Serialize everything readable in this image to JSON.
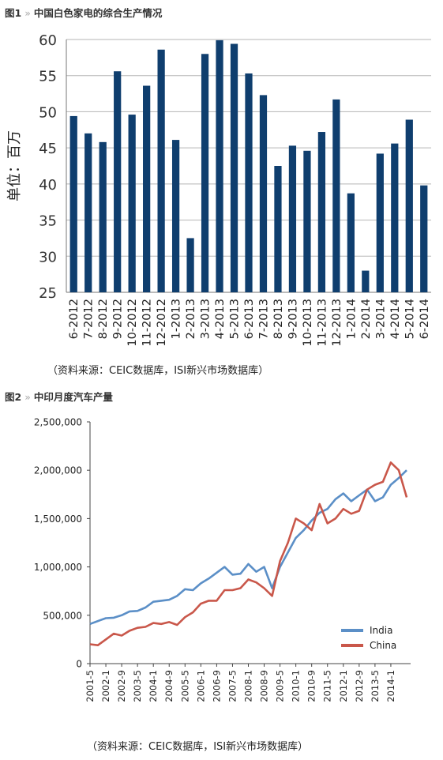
{
  "figure1": {
    "label": "图1",
    "separator": "»",
    "title": "中国白色家电的综合生产情况",
    "source": "（资料来源：CEIC数据库，ISI新兴市场数据库）"
  },
  "figure2": {
    "label": "图2",
    "separator": "»",
    "title": "中印月度汽车产量",
    "source": "（资料来源：CEIC数据库，ISI新兴市场数据库）"
  },
  "chart_data": [
    {
      "type": "bar",
      "ylabel": "单位：百万",
      "ylim": [
        25,
        60
      ],
      "yticks": [
        25,
        30,
        35,
        40,
        45,
        50,
        55,
        60
      ],
      "grid": true,
      "bar_color": "#0f3e6e",
      "categories": [
        "6-2012",
        "7-2012",
        "8-2012",
        "9-2012",
        "10-2012",
        "11-2012",
        "12-2012",
        "1-2013",
        "2-2013",
        "3-2013",
        "4-2013",
        "5-2013",
        "6-2013",
        "7-2013",
        "8-2013",
        "9-2013",
        "10-2013",
        "11-2013",
        "12-2013",
        "1-2014",
        "2-2014",
        "3-2014",
        "4-2014",
        "5-2014",
        "6-2014"
      ],
      "values": [
        49.4,
        47.0,
        45.8,
        55.6,
        49.6,
        53.6,
        58.6,
        46.1,
        32.5,
        58.0,
        59.9,
        59.4,
        55.3,
        52.3,
        42.5,
        45.3,
        44.6,
        47.2,
        51.7,
        38.7,
        28.0,
        44.2,
        45.6,
        48.9,
        39.8
      ]
    },
    {
      "type": "line",
      "ylim": [
        0,
        2500000
      ],
      "yticks": [
        "0",
        "500,000",
        "1,000,000",
        "1,500,000",
        "2,000,000",
        "2,500,000"
      ],
      "xticks": [
        "2001-5",
        "2002-1",
        "2002-9",
        "2003-5",
        "2004-1",
        "2004-9",
        "2005-5",
        "2006-1",
        "2006-9",
        "2007-5",
        "2008-1",
        "2008-9",
        "2009-5",
        "2010-1",
        "2010-9",
        "2011-5",
        "2012-1",
        "2012-9",
        "2013-5",
        "2014-1"
      ],
      "legend_position": "bottom-right",
      "grid": false,
      "series": [
        {
          "name": "India",
          "color": "#5b8fc7",
          "points": [
            [
              "2001-05",
              410000
            ],
            [
              "2001-09",
              440000
            ],
            [
              "2002-01",
              470000
            ],
            [
              "2002-05",
              475000
            ],
            [
              "2002-09",
              500000
            ],
            [
              "2003-01",
              540000
            ],
            [
              "2003-05",
              545000
            ],
            [
              "2003-09",
              580000
            ],
            [
              "2004-01",
              640000
            ],
            [
              "2004-05",
              650000
            ],
            [
              "2004-09",
              660000
            ],
            [
              "2005-01",
              700000
            ],
            [
              "2005-05",
              770000
            ],
            [
              "2005-09",
              760000
            ],
            [
              "2006-01",
              830000
            ],
            [
              "2006-05",
              880000
            ],
            [
              "2006-09",
              940000
            ],
            [
              "2007-01",
              1000000
            ],
            [
              "2007-05",
              920000
            ],
            [
              "2007-09",
              930000
            ],
            [
              "2008-01",
              1030000
            ],
            [
              "2008-05",
              950000
            ],
            [
              "2008-09",
              1000000
            ],
            [
              "2009-01",
              780000
            ],
            [
              "2009-05",
              1000000
            ],
            [
              "2009-09",
              1150000
            ],
            [
              "2010-01",
              1300000
            ],
            [
              "2010-05",
              1380000
            ],
            [
              "2010-09",
              1480000
            ],
            [
              "2011-01",
              1560000
            ],
            [
              "2011-05",
              1600000
            ],
            [
              "2011-09",
              1700000
            ],
            [
              "2012-01",
              1760000
            ],
            [
              "2012-05",
              1680000
            ],
            [
              "2012-09",
              1740000
            ],
            [
              "2013-01",
              1800000
            ],
            [
              "2013-05",
              1680000
            ],
            [
              "2013-09",
              1720000
            ],
            [
              "2014-01",
              1850000
            ],
            [
              "2014-05",
              1920000
            ],
            [
              "2014-09",
              2000000
            ]
          ]
        },
        {
          "name": "China",
          "color": "#c9574a",
          "points": [
            [
              "2001-05",
              200000
            ],
            [
              "2001-09",
              190000
            ],
            [
              "2002-01",
              250000
            ],
            [
              "2002-05",
              310000
            ],
            [
              "2002-09",
              290000
            ],
            [
              "2003-01",
              340000
            ],
            [
              "2003-05",
              370000
            ],
            [
              "2003-09",
              380000
            ],
            [
              "2004-01",
              420000
            ],
            [
              "2004-05",
              410000
            ],
            [
              "2004-09",
              430000
            ],
            [
              "2005-01",
              400000
            ],
            [
              "2005-05",
              480000
            ],
            [
              "2005-09",
              530000
            ],
            [
              "2006-01",
              620000
            ],
            [
              "2006-05",
              650000
            ],
            [
              "2006-09",
              650000
            ],
            [
              "2007-01",
              760000
            ],
            [
              "2007-05",
              760000
            ],
            [
              "2007-09",
              780000
            ],
            [
              "2008-01",
              870000
            ],
            [
              "2008-05",
              840000
            ],
            [
              "2008-09",
              780000
            ],
            [
              "2009-01",
              700000
            ],
            [
              "2009-05",
              1060000
            ],
            [
              "2009-09",
              1250000
            ],
            [
              "2010-01",
              1500000
            ],
            [
              "2010-05",
              1450000
            ],
            [
              "2010-09",
              1380000
            ],
            [
              "2011-01",
              1650000
            ],
            [
              "2011-05",
              1450000
            ],
            [
              "2011-09",
              1500000
            ],
            [
              "2012-01",
              1600000
            ],
            [
              "2012-05",
              1550000
            ],
            [
              "2012-09",
              1580000
            ],
            [
              "2013-01",
              1800000
            ],
            [
              "2013-05",
              1850000
            ],
            [
              "2013-09",
              1880000
            ],
            [
              "2014-01",
              2080000
            ],
            [
              "2014-05",
              2000000
            ],
            [
              "2014-09",
              1720000
            ]
          ]
        }
      ]
    }
  ]
}
